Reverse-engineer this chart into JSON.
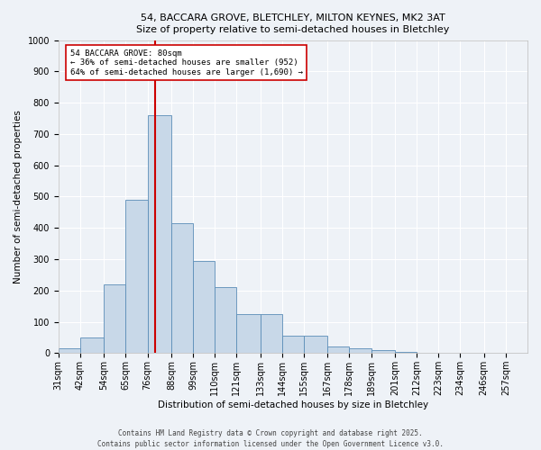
{
  "title_line1": "54, BACCARA GROVE, BLETCHLEY, MILTON KEYNES, MK2 3AT",
  "title_line2": "Size of property relative to semi-detached houses in Bletchley",
  "xlabel": "Distribution of semi-detached houses by size in Bletchley",
  "ylabel": "Number of semi-detached properties",
  "footer_line1": "Contains HM Land Registry data © Crown copyright and database right 2025.",
  "footer_line2": "Contains public sector information licensed under the Open Government Licence v3.0.",
  "annotation_line1": "54 BACCARA GROVE: 80sqm",
  "annotation_line2": "← 36% of semi-detached houses are smaller (952)",
  "annotation_line3": "64% of semi-detached houses are larger (1,690) →",
  "property_size_sqm": 80,
  "bar_color": "#c8d8e8",
  "bar_edge_color": "#5b8db8",
  "vline_color": "#cc0000",
  "background_color": "#eef2f7",
  "grid_color": "#ffffff",
  "categories": [
    "31sqm",
    "42sqm",
    "54sqm",
    "65sqm",
    "76sqm",
    "88sqm",
    "99sqm",
    "110sqm",
    "121sqm",
    "133sqm",
    "144sqm",
    "155sqm",
    "167sqm",
    "178sqm",
    "189sqm",
    "201sqm",
    "212sqm",
    "223sqm",
    "234sqm",
    "246sqm",
    "257sqm"
  ],
  "bin_edges": [
    31,
    42,
    54,
    65,
    76,
    88,
    99,
    110,
    121,
    133,
    144,
    155,
    167,
    178,
    189,
    201,
    212,
    223,
    234,
    246,
    257,
    268
  ],
  "values": [
    15,
    50,
    220,
    490,
    760,
    415,
    295,
    210,
    125,
    125,
    55,
    55,
    20,
    15,
    10,
    5,
    2,
    2,
    1,
    1,
    1
  ],
  "ylim": [
    0,
    1000
  ],
  "yticks": [
    0,
    100,
    200,
    300,
    400,
    500,
    600,
    700,
    800,
    900,
    1000
  ],
  "annotation_box_color": "#ffffff",
  "annotation_box_edge": "#cc0000",
  "title_fontsize": 8,
  "axis_label_fontsize": 7.5,
  "tick_fontsize": 7,
  "annotation_fontsize": 6.5,
  "footer_fontsize": 5.5
}
